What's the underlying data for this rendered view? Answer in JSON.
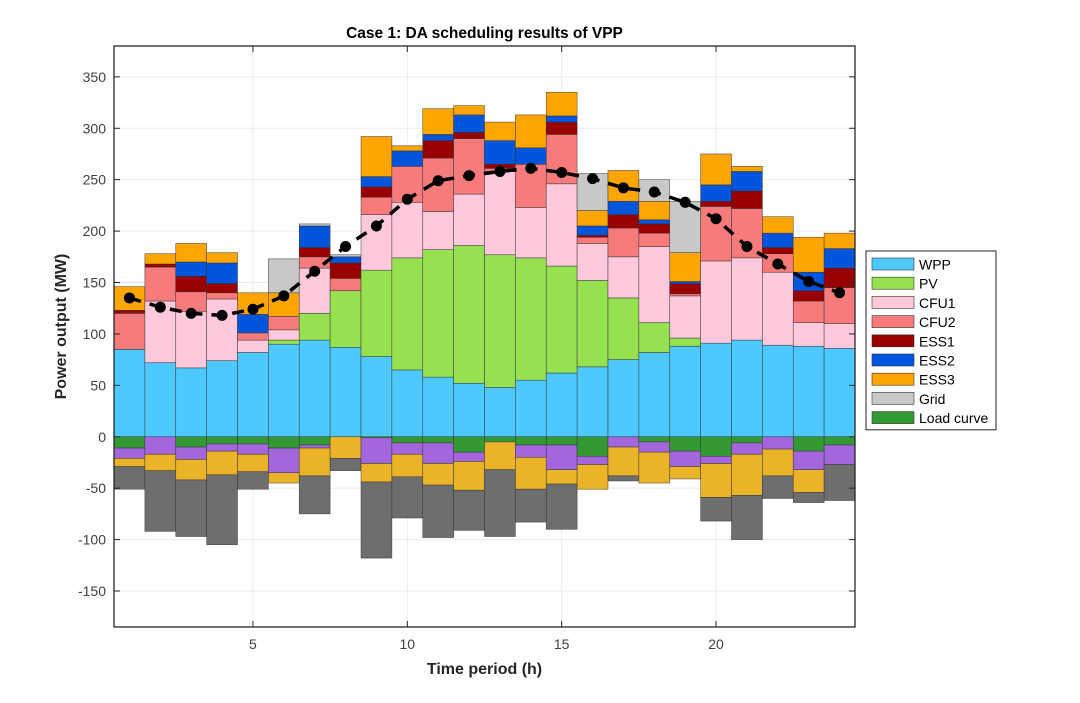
{
  "chart_data": {
    "type": "bar",
    "subtype": "stacked",
    "title": "Case 1: DA scheduling results of VPP",
    "xlabel": "Time period (h)",
    "ylabel": "Power output (MW)",
    "xlim": [
      0.5,
      24.5
    ],
    "ylim": [
      -185,
      380
    ],
    "xticks": [
      5,
      10,
      15,
      20
    ],
    "yticks": [
      -150,
      -100,
      -50,
      0,
      50,
      100,
      150,
      200,
      250,
      300,
      350
    ],
    "grid": true,
    "legend_position": "right-outside",
    "categories": [
      1,
      2,
      3,
      4,
      5,
      6,
      7,
      8,
      9,
      10,
      11,
      12,
      13,
      14,
      15,
      16,
      17,
      18,
      19,
      20,
      21,
      22,
      23,
      24
    ],
    "series": [
      {
        "name": "WPP",
        "color": "#4DC9FF",
        "in_legend": true,
        "values": [
          85,
          72,
          67,
          74,
          82,
          90,
          94,
          87,
          78,
          65,
          58,
          52,
          48,
          55,
          62,
          68,
          75,
          82,
          88,
          91,
          94,
          89,
          88,
          86
        ]
      },
      {
        "name": "PV",
        "color": "#96E150",
        "in_legend": true,
        "values": [
          0,
          0,
          0,
          0,
          0,
          4,
          26,
          55,
          84,
          109,
          124,
          134,
          129,
          119,
          104,
          84,
          60,
          29,
          8,
          0,
          0,
          0,
          0,
          0
        ]
      },
      {
        "name": "CFU1",
        "color": "#FFC8DC",
        "in_legend": true,
        "values": [
          0,
          60,
          55,
          60,
          12,
          10,
          44,
          0,
          54,
          54,
          37,
          50,
          81,
          49,
          80,
          36,
          40,
          74,
          41,
          80,
          80,
          71,
          23,
          24
        ]
      },
      {
        "name": "CFU2",
        "color": "#F77B7B",
        "in_legend": true,
        "values": [
          35,
          33,
          19,
          6,
          7,
          13,
          11,
          12,
          17,
          35,
          52,
          54,
          3,
          42,
          48,
          6,
          28,
          13,
          2,
          53,
          48,
          18,
          21,
          35
        ]
      },
      {
        "name": "ESS1",
        "color": "#990000",
        "in_legend": true,
        "values": [
          3,
          3,
          15,
          9,
          0,
          0,
          9,
          15,
          10,
          0,
          17,
          6,
          4,
          0,
          12,
          2,
          13,
          9,
          10,
          5,
          17,
          6,
          10,
          19
        ]
      },
      {
        "name": "ESS2",
        "color": "#0055DD",
        "in_legend": true,
        "values": [
          0,
          0,
          14,
          20,
          18,
          0,
          21,
          6,
          10,
          15,
          6,
          17,
          23,
          16,
          6,
          9,
          13,
          4,
          2,
          16,
          19,
          14,
          18,
          19
        ]
      },
      {
        "name": "ESS3",
        "color": "#FFA500",
        "in_legend": true,
        "values": [
          23,
          10,
          18,
          10,
          21,
          23,
          0,
          0,
          39,
          5,
          25,
          9,
          18,
          32,
          23,
          15,
          30,
          18,
          28,
          30,
          5,
          16,
          34,
          15
        ]
      },
      {
        "name": "Grid",
        "color": "#C8C8C8",
        "in_legend": true,
        "values": [
          0,
          0,
          0,
          0,
          0,
          33,
          2,
          2,
          0,
          0,
          0,
          0,
          0,
          0,
          0,
          36,
          0,
          21,
          50,
          0,
          0,
          0,
          0,
          0
        ]
      },
      {
        "name": "Load curve",
        "color": "#339933",
        "in_legend": true,
        "negative": true,
        "values": [
          -11,
          0,
          -10,
          -7,
          -7,
          -11,
          -8,
          0,
          -1,
          -6,
          -6,
          -15,
          -5,
          -8,
          -8,
          -19,
          0,
          -5,
          -14,
          -19,
          -6,
          0,
          -14,
          -8
        ]
      },
      {
        "name": "Purple (unlabeled)",
        "color": "#A366DD",
        "in_legend": false,
        "negative": true,
        "values": [
          -10,
          -17,
          -12,
          -7,
          -10,
          -24,
          -3,
          0,
          -25,
          -11,
          -20,
          -9,
          0,
          -12,
          -24,
          -8,
          -10,
          -10,
          -15,
          -7,
          -11,
          -12,
          -18,
          -19
        ]
      },
      {
        "name": "Gold (unlabeled)",
        "color": "#EBB428",
        "in_legend": false,
        "negative": true,
        "values": [
          -8,
          -16,
          -20,
          -23,
          -17,
          -10,
          -27,
          -21,
          -18,
          -22,
          -21,
          -28,
          -27,
          -31,
          -14,
          -24,
          -28,
          -30,
          -12,
          -33,
          -40,
          -26,
          -22,
          0
        ]
      },
      {
        "name": "Gray (unlabeled)",
        "color": "#6E6E6E",
        "in_legend": false,
        "negative": true,
        "values": [
          -22,
          -59,
          -55,
          -68,
          -17,
          0,
          -37,
          -12,
          -74,
          -40,
          -51,
          -39,
          -65,
          -32,
          -44,
          0,
          -5,
          0,
          0,
          -23,
          -43,
          -22,
          -10,
          -35
        ]
      }
    ],
    "load_line": {
      "name": "Load",
      "style": "dashed-black-with-dots",
      "values": [
        135,
        126,
        120,
        118,
        124,
        137,
        161,
        185,
        205,
        231,
        249,
        254,
        258,
        261,
        257,
        251,
        242,
        238,
        228,
        212,
        185,
        168,
        151,
        140
      ]
    }
  }
}
